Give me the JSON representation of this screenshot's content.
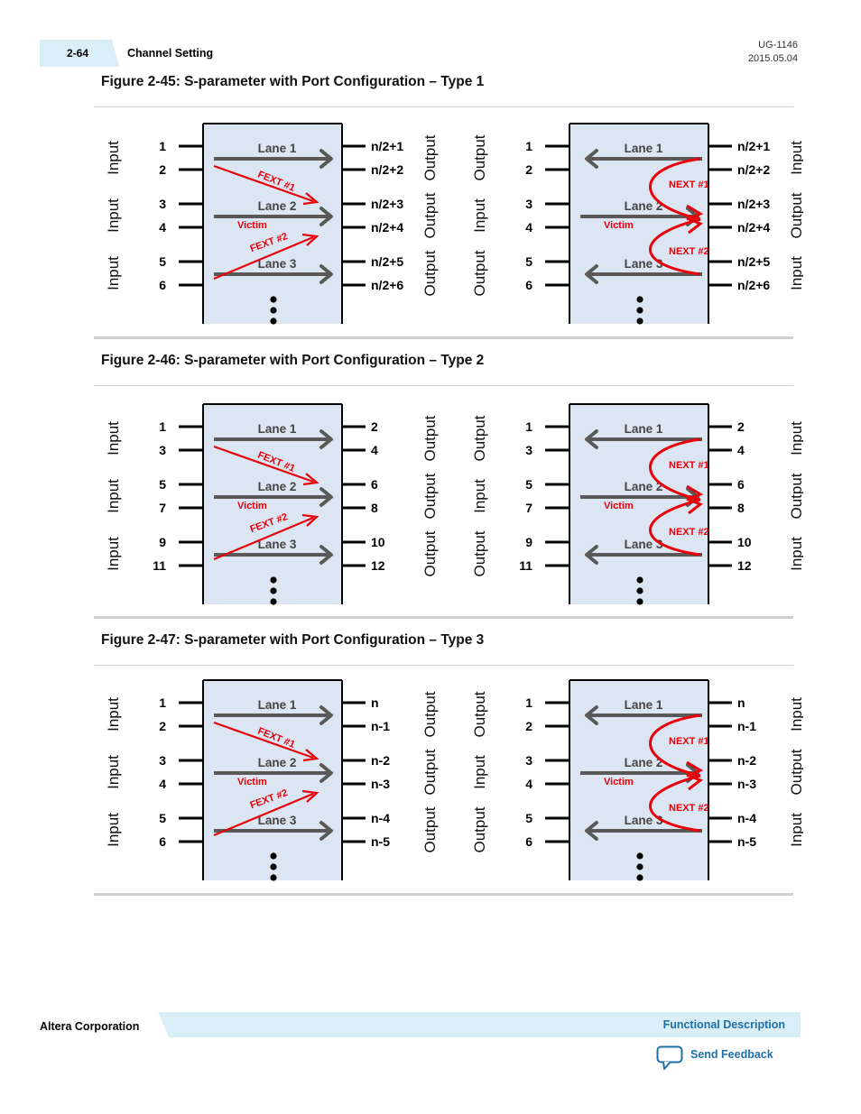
{
  "header": {
    "page_number": "2-64",
    "section": "Channel Setting",
    "doc_id": "UG-1146",
    "doc_date": "2015.05.04"
  },
  "figures": [
    {
      "title": "Figure 2-45: S-parameter with Port Configuration – Type 1",
      "left_ports": [
        "1",
        "2",
        "3",
        "4",
        "5",
        "6"
      ],
      "right_ports": [
        "n/2+1",
        "n/2+2",
        "n/2+3",
        "n/2+4",
        "n/2+5",
        "n/2+6"
      ]
    },
    {
      "title": "Figure 2-46: S-parameter with Port Configuration – Type 2",
      "left_ports": [
        "1",
        "3",
        "5",
        "7",
        "9",
        "11"
      ],
      "right_ports": [
        "2",
        "4",
        "6",
        "8",
        "10",
        "12"
      ]
    },
    {
      "title": "Figure 2-47: S-parameter with Port Configuration – Type 3",
      "left_ports": [
        "1",
        "2",
        "3",
        "4",
        "5",
        "6"
      ],
      "right_ports": [
        "n",
        "n-1",
        "n-2",
        "n-3",
        "n-4",
        "n-5"
      ]
    }
  ],
  "diagram_labels": {
    "lanes": [
      "Lane 1",
      "Lane 2",
      "Lane 3"
    ],
    "victim": "Victim",
    "fext": [
      "FEXT #1",
      "FEXT #2"
    ],
    "next": [
      "NEXT #1",
      "NEXT #2"
    ],
    "fext_side": {
      "left": [
        "Input",
        "Input",
        "Input"
      ],
      "right": [
        "Output",
        "Output",
        "Output"
      ]
    },
    "next_side": {
      "left": [
        "Output",
        "Input",
        "Output"
      ],
      "right": [
        "Input",
        "Output",
        "Input"
      ]
    }
  },
  "colors": {
    "box_fill": "#dce6f2",
    "arrow_gray": "#595959",
    "crosstalk_red": "#e8000b",
    "header_band": "#d9eef6",
    "link_blue": "#1f6fa8"
  },
  "footer": {
    "company": "Altera Corporation",
    "section_link": "Functional Description",
    "feedback": "Send Feedback"
  }
}
